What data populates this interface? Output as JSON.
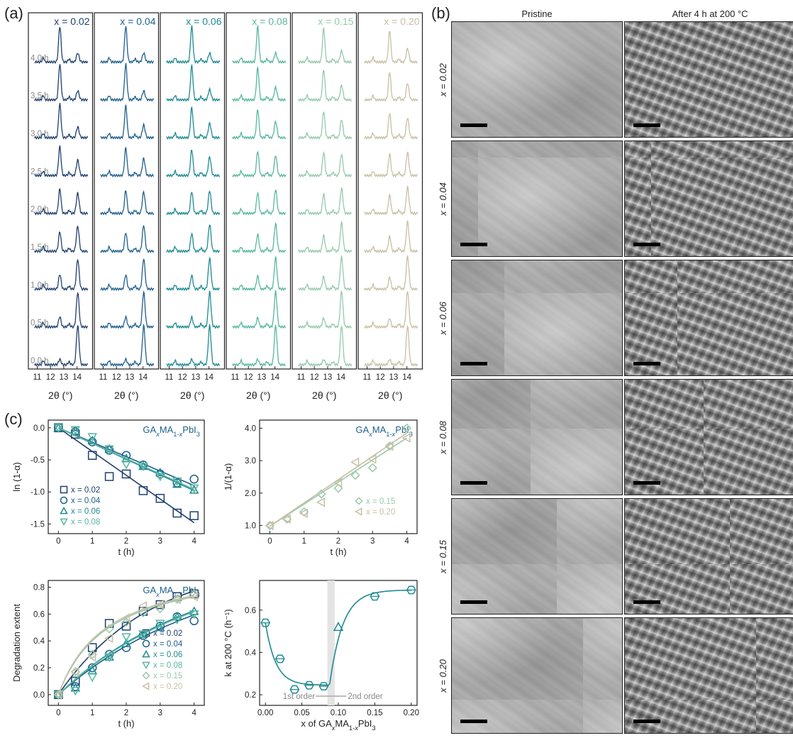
{
  "panels": {
    "a": "(a)",
    "b": "(b)",
    "c": "(c)"
  },
  "xrd": {
    "columns": [
      {
        "label": "x = 0.02",
        "color": "#1f3f6e"
      },
      {
        "label": "x = 0.04",
        "color": "#1e5f8c"
      },
      {
        "label": "x = 0.06",
        "color": "#1f8a92"
      },
      {
        "label": "x = 0.08",
        "color": "#58b7a0"
      },
      {
        "label": "x = 0.15",
        "color": "#96c9ab"
      },
      {
        "label": "x = 0.20",
        "color": "#c8bfa3"
      }
    ],
    "times": [
      "4.0 h",
      "3.5 h",
      "3.0 h",
      "2.5 h",
      "2.0 h",
      "1.5 h",
      "1.0 h",
      "0.5 h",
      "0.0 h"
    ],
    "ticks": [
      "11",
      "12",
      "13",
      "14"
    ],
    "xlabel": "2θ (°)"
  },
  "sem": {
    "col_headers": [
      "Pristine",
      "After 4 h at 200 °C"
    ],
    "rows": [
      "x = 0.02",
      "x = 0.04",
      "x = 0.06",
      "x = 0.08",
      "x = 0.15",
      "x = 0.20"
    ]
  },
  "chart_data": [
    {
      "type": "scatter",
      "title": "GAxMA1-xPbI3",
      "xlabel": "t (h)",
      "ylabel": "ln (1-α)",
      "xlim": [
        -0.3,
        4.3
      ],
      "ylim": [
        -1.65,
        0.12
      ],
      "xticks": [
        0,
        1,
        2,
        3,
        4
      ],
      "yticks": [
        0.0,
        -0.5,
        -1.0,
        -1.5
      ],
      "series": [
        {
          "name": "x = 0.02",
          "marker": "square",
          "color": "#1f3f6e",
          "x": [
            0,
            0.5,
            1,
            1.5,
            2,
            2.5,
            3,
            3.5,
            4
          ],
          "y": [
            0.0,
            -0.1,
            -0.43,
            -0.76,
            -0.72,
            -0.98,
            -1.1,
            -1.33,
            -1.37
          ],
          "fit": [
            [
              0,
              0.0
            ],
            [
              4,
              -1.48
            ]
          ]
        },
        {
          "name": "x = 0.04",
          "marker": "circle",
          "color": "#1e5f8c",
          "x": [
            0,
            0.5,
            1,
            1.5,
            2,
            2.5,
            3,
            3.5,
            4
          ],
          "y": [
            0.0,
            -0.06,
            -0.22,
            -0.35,
            -0.43,
            -0.58,
            -0.72,
            -0.86,
            -0.8
          ],
          "fit": [
            [
              0,
              0.0
            ],
            [
              4,
              -0.9
            ]
          ]
        },
        {
          "name": "x = 0.06",
          "marker": "triangle-up",
          "color": "#1f8a92",
          "x": [
            0,
            0.5,
            1,
            1.5,
            2,
            2.5,
            3,
            3.5,
            4
          ],
          "y": [
            0.0,
            -0.05,
            -0.2,
            -0.33,
            -0.48,
            -0.6,
            -0.7,
            -0.88,
            -0.97
          ],
          "fit": [
            [
              0,
              0.0
            ],
            [
              4,
              -0.98
            ]
          ]
        },
        {
          "name": "x = 0.08",
          "marker": "triangle-down",
          "color": "#58b7a0",
          "x": [
            0,
            0.5,
            1,
            1.5,
            2,
            2.5,
            3,
            3.5,
            4
          ],
          "y": [
            0.0,
            -0.03,
            -0.14,
            -0.33,
            -0.57,
            -0.6,
            -0.76,
            -0.83,
            -0.94
          ],
          "fit": [
            [
              0,
              0.0
            ],
            [
              4,
              -0.96
            ]
          ]
        }
      ]
    },
    {
      "type": "scatter",
      "title": "GAxMA1-xPbI3",
      "xlabel": "t (h)",
      "ylabel": "1/(1-α)",
      "xlim": [
        -0.3,
        4.3
      ],
      "ylim": [
        0.75,
        4.25
      ],
      "xticks": [
        0,
        1,
        2,
        3,
        4
      ],
      "yticks": [
        1.0,
        2.0,
        3.0,
        4.0
      ],
      "series": [
        {
          "name": "x = 0.15",
          "marker": "diamond",
          "color": "#96c9ab",
          "x": [
            0,
            0.5,
            1,
            1.5,
            2,
            2.5,
            3,
            3.5,
            4
          ],
          "y": [
            1.0,
            1.2,
            1.42,
            1.97,
            2.15,
            2.55,
            2.78,
            3.45,
            4.0
          ],
          "fit": [
            [
              0,
              0.98
            ],
            [
              4,
              3.7
            ]
          ]
        },
        {
          "name": "x = 0.20",
          "marker": "triangle-left",
          "color": "#c8bfa3",
          "x": [
            0,
            0.5,
            1,
            1.5,
            2,
            2.5,
            3,
            3.5,
            4
          ],
          "y": [
            1.0,
            1.2,
            1.38,
            1.72,
            2.32,
            2.95,
            3.05,
            3.45,
            3.7
          ],
          "fit": [
            [
              0,
              0.98
            ],
            [
              4,
              3.85
            ]
          ]
        }
      ]
    },
    {
      "type": "scatter",
      "title": "GAxMA1-xPbI3",
      "xlabel": "t (h)",
      "ylabel": "Degradation extent",
      "xlim": [
        -0.3,
        4.3
      ],
      "ylim": [
        -0.08,
        0.85
      ],
      "xticks": [
        0,
        1,
        2,
        3,
        4
      ],
      "yticks": [
        0.0,
        0.2,
        0.4,
        0.6,
        0.8
      ],
      "series": [
        {
          "name": "x = 0.02",
          "marker": "square",
          "color": "#1f3f6e",
          "x": [
            0,
            0.5,
            1,
            1.5,
            2,
            2.5,
            3,
            3.5,
            4
          ],
          "y": [
            0.0,
            0.1,
            0.35,
            0.53,
            0.51,
            0.62,
            0.67,
            0.73,
            0.75
          ],
          "k": 0.37
        },
        {
          "name": "x = 0.04",
          "marker": "circle",
          "color": "#1e5f8c",
          "x": [
            0,
            0.5,
            1,
            1.5,
            2,
            2.5,
            3,
            3.5,
            4
          ],
          "y": [
            0.0,
            0.06,
            0.2,
            0.3,
            0.35,
            0.44,
            0.51,
            0.58,
            0.55
          ],
          "k": 0.225
        },
        {
          "name": "x = 0.06",
          "marker": "triangle-up",
          "color": "#1f8a92",
          "x": [
            0,
            0.5,
            1,
            1.5,
            2,
            2.5,
            3,
            3.5,
            4
          ],
          "y": [
            0.0,
            0.05,
            0.18,
            0.28,
            0.38,
            0.45,
            0.5,
            0.58,
            0.62
          ],
          "k": 0.245
        },
        {
          "name": "x = 0.08",
          "marker": "triangle-down",
          "color": "#58b7a0",
          "x": [
            0,
            0.5,
            1,
            1.5,
            2,
            2.5,
            3,
            3.5,
            4
          ],
          "y": [
            0.0,
            0.03,
            0.13,
            0.28,
            0.43,
            0.45,
            0.53,
            0.56,
            0.6
          ],
          "k": 0.24
        },
        {
          "name": "x = 0.15",
          "marker": "diamond",
          "color": "#96c9ab",
          "x": [
            0,
            0.5,
            1,
            1.5,
            2,
            2.5,
            3,
            3.5,
            4
          ],
          "y": [
            0.0,
            0.17,
            0.3,
            0.49,
            0.54,
            0.61,
            0.64,
            0.71,
            0.75
          ],
          "k": 0.67
        },
        {
          "name": "x = 0.20",
          "marker": "triangle-left",
          "color": "#c8bfa3",
          "x": [
            0,
            0.5,
            1,
            1.5,
            2,
            2.5,
            3,
            3.5,
            4
          ],
          "y": [
            0.0,
            0.17,
            0.28,
            0.42,
            0.57,
            0.66,
            0.67,
            0.71,
            0.73
          ],
          "k": 0.7
        }
      ]
    },
    {
      "type": "scatter",
      "xlabel": "x of GAxMA1-xPbI3",
      "ylabel": "k at 200 °C (h⁻¹)",
      "xlim": [
        -0.008,
        0.208
      ],
      "ylim": [
        0.15,
        0.74
      ],
      "xticks": [
        0.0,
        0.05,
        0.1,
        0.15,
        0.2
      ],
      "yticks": [
        0.2,
        0.4,
        0.6
      ],
      "color": "#1f8a92",
      "points": [
        {
          "x": 0.0,
          "y": 0.54,
          "marker": "hex"
        },
        {
          "x": 0.02,
          "y": 0.37,
          "marker": "hex"
        },
        {
          "x": 0.04,
          "y": 0.225,
          "marker": "hex"
        },
        {
          "x": 0.06,
          "y": 0.245,
          "marker": "hex"
        },
        {
          "x": 0.08,
          "y": 0.24,
          "marker": "hex"
        },
        {
          "x": 0.1,
          "y": 0.52,
          "marker": "triangle-up"
        },
        {
          "x": 0.15,
          "y": 0.665,
          "marker": "hex"
        },
        {
          "x": 0.2,
          "y": 0.695,
          "marker": "hex"
        }
      ],
      "shaded_x": [
        0.085,
        0.095
      ],
      "annotations": [
        "1st order",
        "2nd order"
      ]
    }
  ]
}
